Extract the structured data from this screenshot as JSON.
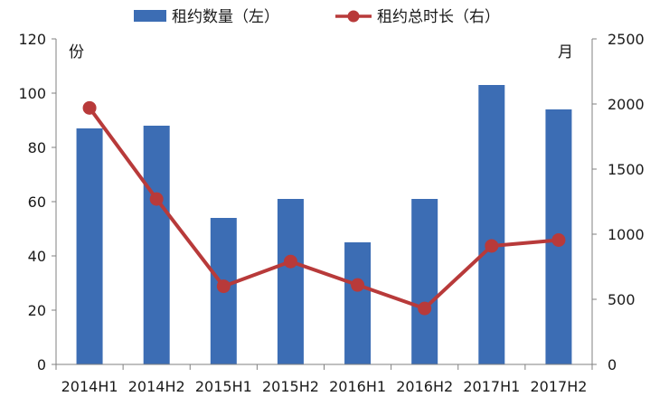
{
  "chart_data": {
    "type": "bar+line",
    "categories": [
      "2014H1",
      "2014H2",
      "2015H1",
      "2015H2",
      "2016H1",
      "2016H2",
      "2017H1",
      "2017H2"
    ],
    "series": [
      {
        "name": "租约数量（左）",
        "type": "bar",
        "axis": "left",
        "color": "#3C6DB4",
        "values": [
          87,
          88,
          54,
          61,
          45,
          61,
          103,
          94
        ]
      },
      {
        "name": "租约总时长（右）",
        "type": "line",
        "axis": "right",
        "color": "#B83A3A",
        "values": [
          1970,
          1270,
          600,
          790,
          610,
          430,
          910,
          955
        ]
      }
    ],
    "y_left": {
      "label": "份",
      "range": [
        0,
        120
      ],
      "ticks": [
        "0",
        "20",
        "40",
        "60",
        "80",
        "100",
        "120"
      ]
    },
    "y_right": {
      "label": "月",
      "range": [
        0,
        2500
      ],
      "ticks": [
        "0",
        "500",
        "1000",
        "1500",
        "2000",
        "2500"
      ]
    },
    "legend_position": "top-center",
    "grid": false
  }
}
